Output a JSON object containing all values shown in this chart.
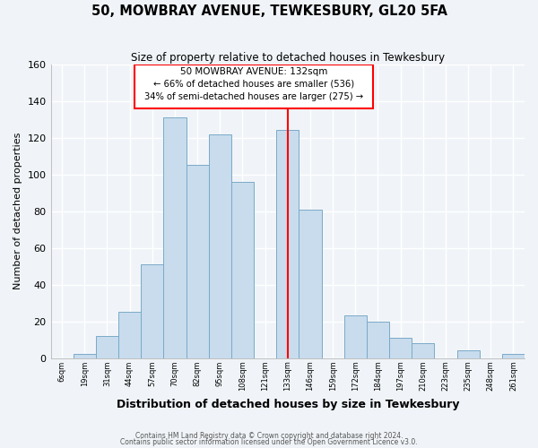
{
  "title": "50, MOWBRAY AVENUE, TEWKESBURY, GL20 5FA",
  "subtitle": "Size of property relative to detached houses in Tewkesbury",
  "xlabel": "Distribution of detached houses by size in Tewkesbury",
  "ylabel": "Number of detached properties",
  "bar_color": "#c8dced",
  "bar_edge_color": "#7aaac8",
  "background_color": "#f0f4f8",
  "grid_color": "#ffffff",
  "tick_labels": [
    "6sqm",
    "19sqm",
    "31sqm",
    "44sqm",
    "57sqm",
    "70sqm",
    "82sqm",
    "95sqm",
    "108sqm",
    "121sqm",
    "133sqm",
    "146sqm",
    "159sqm",
    "172sqm",
    "184sqm",
    "197sqm",
    "210sqm",
    "223sqm",
    "235sqm",
    "248sqm",
    "261sqm"
  ],
  "bar_heights": [
    0,
    2,
    12,
    25,
    51,
    131,
    105,
    122,
    96,
    0,
    124,
    81,
    0,
    23,
    20,
    11,
    8,
    0,
    4,
    0,
    2
  ],
  "ylim": [
    0,
    160
  ],
  "yticks": [
    0,
    20,
    40,
    60,
    80,
    100,
    120,
    140,
    160
  ],
  "property_line_index": 10,
  "annotation_title": "50 MOWBRAY AVENUE: 132sqm",
  "annotation_line1": "← 66% of detached houses are smaller (536)",
  "annotation_line2": "34% of semi-detached houses are larger (275) →",
  "footnote1": "Contains HM Land Registry data © Crown copyright and database right 2024.",
  "footnote2": "Contains public sector information licensed under the Open Government Licence v3.0."
}
